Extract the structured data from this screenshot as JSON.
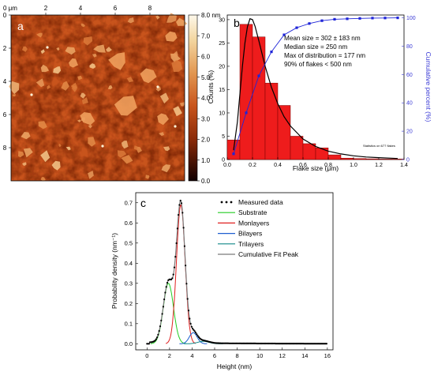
{
  "panel_a": {
    "letter": "a",
    "x_unit": "0 μm",
    "x_ticks": [
      "2",
      "4",
      "6",
      "8"
    ],
    "y_ticks": [
      "0",
      "2",
      "4",
      "6",
      "8"
    ],
    "colorbar_ticks": [
      "8.0 nm",
      "7.0",
      "6.0",
      "5.0",
      "4.0",
      "3.0",
      "2.0",
      "1.0",
      "0.0"
    ],
    "colorbar_range": [
      0,
      8
    ],
    "colors": {
      "high": "#fbf3dd",
      "mid": "#c8541c",
      "low": "#110000"
    }
  },
  "chart_data": [
    {
      "id": "b",
      "type": "bar",
      "letter": "b",
      "xlabel": "Flake size (μm)",
      "ylabel": "Counts (%)",
      "y2label": "Cumulative percent (%)",
      "xlim": [
        0,
        1.4
      ],
      "ylim": [
        0,
        31
      ],
      "y2lim": [
        0,
        102
      ],
      "xticks": [
        "0.0",
        "0.2",
        "0.4",
        "0.6",
        "0.8",
        "1.0",
        "1.2",
        "1.4"
      ],
      "yticks": [
        "0",
        "5",
        "10",
        "15",
        "20",
        "25",
        "30"
      ],
      "y2ticks": [
        "0",
        "20",
        "40",
        "60",
        "80",
        "100"
      ],
      "annotations": [
        "Mean size = 302 ± 183 nm",
        "Median size = 250 nm",
        "Max of distribution = 177 nm",
        "90% of flakes < 500 nm"
      ],
      "footnote": "Statistics on 677 flakes",
      "bins": [
        0.05,
        0.15,
        0.25,
        0.35,
        0.45,
        0.55,
        0.65,
        0.75,
        0.85,
        0.95,
        1.05,
        1.15,
        1.25,
        1.35
      ],
      "counts": [
        4.2,
        29,
        26.3,
        16.4,
        11.6,
        5.0,
        3.4,
        2.5,
        1.0,
        0.3,
        0.2,
        0.15,
        0.1,
        0.1
      ],
      "fit_curve": {
        "x": [
          0.05,
          0.08,
          0.1,
          0.12,
          0.14,
          0.16,
          0.18,
          0.2,
          0.22,
          0.25,
          0.3,
          0.35,
          0.4,
          0.45,
          0.5,
          0.6,
          0.7,
          0.8,
          0.9,
          1.0,
          1.1,
          1.2,
          1.3,
          1.35
        ],
        "y": [
          2.0,
          8,
          14,
          20,
          25,
          28.5,
          30.2,
          30,
          28.6,
          25.5,
          20,
          15.5,
          12,
          9.2,
          7.2,
          4.4,
          2.8,
          1.8,
          1.2,
          0.8,
          0.55,
          0.4,
          0.28,
          0.22
        ]
      },
      "cumulative": {
        "x": [
          0.05,
          0.15,
          0.25,
          0.35,
          0.45,
          0.55,
          0.65,
          0.75,
          0.85,
          0.95,
          1.05,
          1.15,
          1.25,
          1.35
        ],
        "y": [
          4,
          33,
          59,
          76,
          88,
          93,
          96,
          98,
          99,
          99.3,
          99.6,
          99.8,
          99.9,
          100
        ]
      },
      "colors": {
        "bars": "#ee1c1c",
        "fit": "#000000",
        "cumulative": "#1f25d8",
        "axis2": "#3b3bd6"
      }
    },
    {
      "id": "c",
      "type": "line",
      "letter": "c",
      "xlabel": "Height (nm)",
      "ylabel": "Probability density (nm⁻¹)",
      "xlim": [
        -1,
        16.5
      ],
      "ylim": [
        -0.03,
        0.75
      ],
      "xticks": [
        "0",
        "2",
        "4",
        "6",
        "8",
        "10",
        "12",
        "14",
        "16"
      ],
      "yticks": [
        "0.0",
        "0.1",
        "0.2",
        "0.3",
        "0.4",
        "0.5",
        "0.6",
        "0.7"
      ],
      "legend": [
        "Measured data",
        "Substrate",
        "Monlayers",
        "Bilayers",
        "Trilayers",
        "Cumulative Fit Peak"
      ],
      "legend_position": "top-right",
      "components": [
        {
          "name": "Substrate",
          "center": 1.9,
          "amp": 0.3,
          "sigma": 0.45,
          "color": "#22cc22"
        },
        {
          "name": "Monlayers",
          "center": 3.0,
          "amp": 0.69,
          "sigma": 0.38,
          "color": "#e02020"
        },
        {
          "name": "Bilayers",
          "center": 4.1,
          "amp": 0.055,
          "sigma": 0.35,
          "color": "#1f5fd0"
        },
        {
          "name": "Trilayers",
          "center": 5.0,
          "amp": 0.012,
          "sigma": 0.5,
          "color": "#118888"
        }
      ],
      "measured_range": [
        0,
        16
      ],
      "colors": {
        "measured": "#000000",
        "cumulative": "#7a7a7a"
      }
    }
  ]
}
